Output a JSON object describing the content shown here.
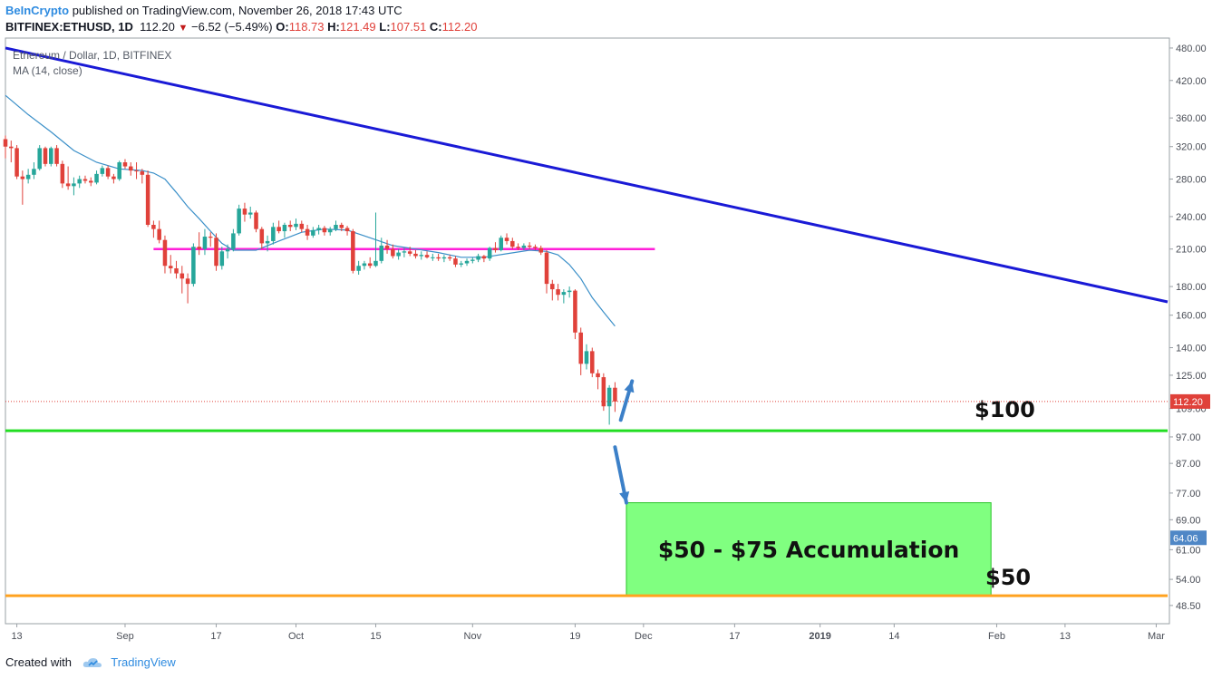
{
  "header": {
    "brand": "BeInCrypto",
    "published": "published on TradingView.com, November 26, 2018 17:43 UTC",
    "symbol": "BITFINEX:ETHUSD, 1D",
    "last": "112.20",
    "change": "−6.52 (−5.49%)",
    "open_label": "O:",
    "open": "118.73",
    "high_label": "H:",
    "high": "121.49",
    "low_label": "L:",
    "low": "107.51",
    "close_label": "C:",
    "close": "112.20"
  },
  "legend": {
    "title": "Ethereum / Dollar, 1D, BITFINEX",
    "indicator": "MA (14, close)"
  },
  "footer": {
    "created_with": "Created with",
    "brand": "TradingView"
  },
  "colors": {
    "up": "#26a69a",
    "down": "#e0413a",
    "ma": "#3a8fc8",
    "trendline": "#1a1ad6",
    "resistance": "#ff1fd9",
    "support_100": "#22dd22",
    "support_50": "#ffa21f",
    "zone_fill": "#80ff80",
    "zone_border": "#28c428",
    "arrow": "#3c80c8",
    "price_tag": "#e0413a",
    "zone_tag": "#4f87c6"
  },
  "chart_data": {
    "type": "candlestick",
    "title": "Ethereum / Dollar, 1D, BITFINEX",
    "y_scale": "log",
    "ylim": [
      45,
      500
    ],
    "y_ticks": [
      "480.00",
      "420.00",
      "360.00",
      "320.00",
      "280.00",
      "240.00",
      "210.00",
      "180.00",
      "160.00",
      "140.00",
      "125.00",
      "109.00",
      "97.00",
      "87.00",
      "77.00",
      "69.00",
      "61.00",
      "54.00",
      "48.50"
    ],
    "x_range": [
      "2018-08-11",
      "2019-03-03"
    ],
    "x_ticks": [
      {
        "date": "2018-08-13",
        "label": "13"
      },
      {
        "date": "2018-09-01",
        "label": "Sep"
      },
      {
        "date": "2018-09-17",
        "label": "17"
      },
      {
        "date": "2018-10-01",
        "label": "Oct"
      },
      {
        "date": "2018-10-15",
        "label": "15"
      },
      {
        "date": "2018-11-01",
        "label": "Nov"
      },
      {
        "date": "2018-11-19",
        "label": "19"
      },
      {
        "date": "2018-12-01",
        "label": "Dec"
      },
      {
        "date": "2018-12-17",
        "label": "17"
      },
      {
        "date": "2019-01-01",
        "label": "2019"
      },
      {
        "date": "2019-01-14",
        "label": "14"
      },
      {
        "date": "2019-02-01",
        "label": "Feb"
      },
      {
        "date": "2019-02-13",
        "label": "13"
      },
      {
        "date": "2019-03-01",
        "label": "Mar"
      }
    ],
    "candles": [
      {
        "d": "2018-08-11",
        "o": 330,
        "h": 335,
        "l": 305,
        "c": 320
      },
      {
        "d": "2018-08-12",
        "o": 320,
        "h": 328,
        "l": 300,
        "c": 318
      },
      {
        "d": "2018-08-13",
        "o": 318,
        "h": 322,
        "l": 280,
        "c": 283
      },
      {
        "d": "2018-08-14",
        "o": 283,
        "h": 290,
        "l": 252,
        "c": 280
      },
      {
        "d": "2018-08-15",
        "o": 280,
        "h": 292,
        "l": 275,
        "c": 285
      },
      {
        "d": "2018-08-16",
        "o": 285,
        "h": 300,
        "l": 280,
        "c": 292
      },
      {
        "d": "2018-08-17",
        "o": 292,
        "h": 322,
        "l": 290,
        "c": 318
      },
      {
        "d": "2018-08-18",
        "o": 318,
        "h": 320,
        "l": 295,
        "c": 298
      },
      {
        "d": "2018-08-19",
        "o": 298,
        "h": 320,
        "l": 295,
        "c": 318
      },
      {
        "d": "2018-08-20",
        "o": 318,
        "h": 322,
        "l": 295,
        "c": 298
      },
      {
        "d": "2018-08-21",
        "o": 298,
        "h": 302,
        "l": 270,
        "c": 275
      },
      {
        "d": "2018-08-22",
        "o": 275,
        "h": 295,
        "l": 268,
        "c": 272
      },
      {
        "d": "2018-08-23",
        "o": 272,
        "h": 282,
        "l": 262,
        "c": 275
      },
      {
        "d": "2018-08-24",
        "o": 275,
        "h": 284,
        "l": 270,
        "c": 280
      },
      {
        "d": "2018-08-25",
        "o": 280,
        "h": 284,
        "l": 275,
        "c": 278
      },
      {
        "d": "2018-08-26",
        "o": 278,
        "h": 282,
        "l": 272,
        "c": 276
      },
      {
        "d": "2018-08-27",
        "o": 276,
        "h": 290,
        "l": 274,
        "c": 286
      },
      {
        "d": "2018-08-28",
        "o": 286,
        "h": 296,
        "l": 283,
        "c": 293
      },
      {
        "d": "2018-08-29",
        "o": 293,
        "h": 296,
        "l": 280,
        "c": 283
      },
      {
        "d": "2018-08-30",
        "o": 283,
        "h": 286,
        "l": 275,
        "c": 280
      },
      {
        "d": "2018-08-31",
        "o": 280,
        "h": 302,
        "l": 278,
        "c": 300
      },
      {
        "d": "2018-09-01",
        "o": 300,
        "h": 304,
        "l": 292,
        "c": 295
      },
      {
        "d": "2018-09-02",
        "o": 295,
        "h": 300,
        "l": 284,
        "c": 290
      },
      {
        "d": "2018-09-03",
        "o": 290,
        "h": 300,
        "l": 280,
        "c": 289
      },
      {
        "d": "2018-09-04",
        "o": 289,
        "h": 292,
        "l": 275,
        "c": 285
      },
      {
        "d": "2018-09-05",
        "o": 285,
        "h": 290,
        "l": 230,
        "c": 232
      },
      {
        "d": "2018-09-06",
        "o": 232,
        "h": 236,
        "l": 220,
        "c": 228
      },
      {
        "d": "2018-09-07",
        "o": 228,
        "h": 236,
        "l": 215,
        "c": 218
      },
      {
        "d": "2018-09-08",
        "o": 218,
        "h": 222,
        "l": 190,
        "c": 196
      },
      {
        "d": "2018-09-09",
        "o": 196,
        "h": 205,
        "l": 190,
        "c": 194
      },
      {
        "d": "2018-09-10",
        "o": 194,
        "h": 200,
        "l": 186,
        "c": 190
      },
      {
        "d": "2018-09-11",
        "o": 190,
        "h": 196,
        "l": 175,
        "c": 186
      },
      {
        "d": "2018-09-12",
        "o": 186,
        "h": 190,
        "l": 168,
        "c": 182
      },
      {
        "d": "2018-09-13",
        "o": 182,
        "h": 215,
        "l": 180,
        "c": 212
      },
      {
        "d": "2018-09-14",
        "o": 212,
        "h": 225,
        "l": 205,
        "c": 210
      },
      {
        "d": "2018-09-15",
        "o": 210,
        "h": 228,
        "l": 205,
        "c": 221
      },
      {
        "d": "2018-09-16",
        "o": 221,
        "h": 225,
        "l": 212,
        "c": 220
      },
      {
        "d": "2018-09-17",
        "o": 220,
        "h": 224,
        "l": 192,
        "c": 196
      },
      {
        "d": "2018-09-18",
        "o": 196,
        "h": 212,
        "l": 193,
        "c": 208
      },
      {
        "d": "2018-09-19",
        "o": 208,
        "h": 214,
        "l": 202,
        "c": 210
      },
      {
        "d": "2018-09-20",
        "o": 210,
        "h": 228,
        "l": 208,
        "c": 224
      },
      {
        "d": "2018-09-21",
        "o": 224,
        "h": 252,
        "l": 222,
        "c": 248
      },
      {
        "d": "2018-09-22",
        "o": 248,
        "h": 254,
        "l": 235,
        "c": 242
      },
      {
        "d": "2018-09-23",
        "o": 242,
        "h": 250,
        "l": 238,
        "c": 244
      },
      {
        "d": "2018-09-24",
        "o": 244,
        "h": 246,
        "l": 225,
        "c": 228
      },
      {
        "d": "2018-09-25",
        "o": 228,
        "h": 230,
        "l": 210,
        "c": 215
      },
      {
        "d": "2018-09-26",
        "o": 215,
        "h": 222,
        "l": 208,
        "c": 217
      },
      {
        "d": "2018-09-27",
        "o": 217,
        "h": 234,
        "l": 214,
        "c": 230
      },
      {
        "d": "2018-09-28",
        "o": 230,
        "h": 236,
        "l": 224,
        "c": 226
      },
      {
        "d": "2018-09-29",
        "o": 226,
        "h": 234,
        "l": 220,
        "c": 232
      },
      {
        "d": "2018-09-30",
        "o": 232,
        "h": 236,
        "l": 226,
        "c": 230
      },
      {
        "d": "2018-10-01",
        "o": 230,
        "h": 238,
        "l": 227,
        "c": 233
      },
      {
        "d": "2018-10-02",
        "o": 233,
        "h": 236,
        "l": 225,
        "c": 228
      },
      {
        "d": "2018-10-03",
        "o": 228,
        "h": 232,
        "l": 218,
        "c": 222
      },
      {
        "d": "2018-10-04",
        "o": 222,
        "h": 230,
        "l": 220,
        "c": 227
      },
      {
        "d": "2018-10-05",
        "o": 227,
        "h": 232,
        "l": 223,
        "c": 229
      },
      {
        "d": "2018-10-06",
        "o": 229,
        "h": 231,
        "l": 222,
        "c": 225
      },
      {
        "d": "2018-10-07",
        "o": 225,
        "h": 230,
        "l": 222,
        "c": 228
      },
      {
        "d": "2018-10-08",
        "o": 228,
        "h": 236,
        "l": 226,
        "c": 232
      },
      {
        "d": "2018-10-09",
        "o": 232,
        "h": 234,
        "l": 226,
        "c": 229
      },
      {
        "d": "2018-10-10",
        "o": 229,
        "h": 231,
        "l": 222,
        "c": 226
      },
      {
        "d": "2018-10-11",
        "o": 226,
        "h": 228,
        "l": 190,
        "c": 192
      },
      {
        "d": "2018-10-12",
        "o": 192,
        "h": 200,
        "l": 189,
        "c": 196
      },
      {
        "d": "2018-10-13",
        "o": 196,
        "h": 200,
        "l": 193,
        "c": 198
      },
      {
        "d": "2018-10-14",
        "o": 198,
        "h": 203,
        "l": 194,
        "c": 196
      },
      {
        "d": "2018-10-15",
        "o": 196,
        "h": 244,
        "l": 195,
        "c": 200
      },
      {
        "d": "2018-10-16",
        "o": 200,
        "h": 220,
        "l": 198,
        "c": 213
      },
      {
        "d": "2018-10-17",
        "o": 213,
        "h": 218,
        "l": 206,
        "c": 210
      },
      {
        "d": "2018-10-18",
        "o": 210,
        "h": 214,
        "l": 202,
        "c": 204
      },
      {
        "d": "2018-10-19",
        "o": 204,
        "h": 210,
        "l": 201,
        "c": 207
      },
      {
        "d": "2018-10-20",
        "o": 207,
        "h": 211,
        "l": 203,
        "c": 208
      },
      {
        "d": "2018-10-21",
        "o": 208,
        "h": 212,
        "l": 204,
        "c": 206
      },
      {
        "d": "2018-10-22",
        "o": 206,
        "h": 209,
        "l": 202,
        "c": 204
      },
      {
        "d": "2018-10-23",
        "o": 204,
        "h": 208,
        "l": 201,
        "c": 205
      },
      {
        "d": "2018-10-24",
        "o": 205,
        "h": 208,
        "l": 202,
        "c": 203
      },
      {
        "d": "2018-10-25",
        "o": 203,
        "h": 206,
        "l": 200,
        "c": 203
      },
      {
        "d": "2018-10-26",
        "o": 203,
        "h": 206,
        "l": 200,
        "c": 202
      },
      {
        "d": "2018-10-27",
        "o": 202,
        "h": 205,
        "l": 199,
        "c": 203
      },
      {
        "d": "2018-10-28",
        "o": 203,
        "h": 205,
        "l": 200,
        "c": 202
      },
      {
        "d": "2018-10-29",
        "o": 202,
        "h": 204,
        "l": 195,
        "c": 197
      },
      {
        "d": "2018-10-30",
        "o": 197,
        "h": 200,
        "l": 195,
        "c": 198
      },
      {
        "d": "2018-10-31",
        "o": 198,
        "h": 202,
        "l": 196,
        "c": 200
      },
      {
        "d": "2018-11-01",
        "o": 200,
        "h": 203,
        "l": 198,
        "c": 201
      },
      {
        "d": "2018-11-02",
        "o": 201,
        "h": 206,
        "l": 199,
        "c": 204
      },
      {
        "d": "2018-11-03",
        "o": 204,
        "h": 205,
        "l": 199,
        "c": 202
      },
      {
        "d": "2018-11-04",
        "o": 202,
        "h": 212,
        "l": 200,
        "c": 211
      },
      {
        "d": "2018-11-05",
        "o": 211,
        "h": 216,
        "l": 207,
        "c": 209
      },
      {
        "d": "2018-11-06",
        "o": 209,
        "h": 222,
        "l": 208,
        "c": 220
      },
      {
        "d": "2018-11-07",
        "o": 220,
        "h": 224,
        "l": 214,
        "c": 217
      },
      {
        "d": "2018-11-08",
        "o": 217,
        "h": 220,
        "l": 210,
        "c": 212
      },
      {
        "d": "2018-11-09",
        "o": 212,
        "h": 215,
        "l": 209,
        "c": 211
      },
      {
        "d": "2018-11-10",
        "o": 211,
        "h": 215,
        "l": 209,
        "c": 213
      },
      {
        "d": "2018-11-11",
        "o": 213,
        "h": 216,
        "l": 210,
        "c": 212
      },
      {
        "d": "2018-11-12",
        "o": 212,
        "h": 214,
        "l": 209,
        "c": 211
      },
      {
        "d": "2018-11-13",
        "o": 211,
        "h": 213,
        "l": 205,
        "c": 207
      },
      {
        "d": "2018-11-14",
        "o": 207,
        "h": 209,
        "l": 175,
        "c": 182
      },
      {
        "d": "2018-11-15",
        "o": 182,
        "h": 185,
        "l": 170,
        "c": 178
      },
      {
        "d": "2018-11-16",
        "o": 178,
        "h": 182,
        "l": 170,
        "c": 174
      },
      {
        "d": "2018-11-17",
        "o": 174,
        "h": 178,
        "l": 168,
        "c": 176
      },
      {
        "d": "2018-11-18",
        "o": 176,
        "h": 180,
        "l": 172,
        "c": 177
      },
      {
        "d": "2018-11-19",
        "o": 177,
        "h": 178,
        "l": 145,
        "c": 149
      },
      {
        "d": "2018-11-20",
        "o": 149,
        "h": 152,
        "l": 125,
        "c": 131
      },
      {
        "d": "2018-11-21",
        "o": 131,
        "h": 142,
        "l": 128,
        "c": 138
      },
      {
        "d": "2018-11-22",
        "o": 138,
        "h": 140,
        "l": 124,
        "c": 126
      },
      {
        "d": "2018-11-23",
        "o": 126,
        "h": 128,
        "l": 118,
        "c": 124
      },
      {
        "d": "2018-11-24",
        "o": 124,
        "h": 126,
        "l": 108,
        "c": 110
      },
      {
        "d": "2018-11-25",
        "o": 110,
        "h": 120,
        "l": 102,
        "c": 118.73
      },
      {
        "d": "2018-11-26",
        "o": 118.73,
        "h": 121.49,
        "l": 107.51,
        "c": 112.2
      }
    ],
    "ma": {
      "name": "MA (14, close)",
      "points": [
        [
          "2018-08-11",
          395
        ],
        [
          "2018-08-15",
          365
        ],
        [
          "2018-08-19",
          340
        ],
        [
          "2018-08-23",
          315
        ],
        [
          "2018-08-27",
          300
        ],
        [
          "2018-08-31",
          292
        ],
        [
          "2018-09-04",
          290
        ],
        [
          "2018-09-06",
          287
        ],
        [
          "2018-09-08",
          280
        ],
        [
          "2018-09-10",
          265
        ],
        [
          "2018-09-12",
          250
        ],
        [
          "2018-09-14",
          238
        ],
        [
          "2018-09-16",
          226
        ],
        [
          "2018-09-18",
          215
        ],
        [
          "2018-09-20",
          209
        ],
        [
          "2018-09-24",
          209
        ],
        [
          "2018-09-28",
          217
        ],
        [
          "2018-10-02",
          225
        ],
        [
          "2018-10-06",
          228
        ],
        [
          "2018-10-10",
          227
        ],
        [
          "2018-10-14",
          220
        ],
        [
          "2018-10-18",
          213
        ],
        [
          "2018-10-22",
          210
        ],
        [
          "2018-10-26",
          207
        ],
        [
          "2018-10-30",
          203
        ],
        [
          "2018-11-03",
          203
        ],
        [
          "2018-11-07",
          206
        ],
        [
          "2018-11-11",
          209
        ],
        [
          "2018-11-14",
          208
        ],
        [
          "2018-11-16",
          205
        ],
        [
          "2018-11-18",
          197
        ],
        [
          "2018-11-20",
          186
        ],
        [
          "2018-11-22",
          172
        ],
        [
          "2018-11-24",
          162
        ],
        [
          "2018-11-26",
          153
        ]
      ]
    },
    "annotations": {
      "trendline": {
        "from": [
          "2018-08-11",
          480
        ],
        "to": [
          "2019-03-03",
          169
        ]
      },
      "resistance": {
        "y": 210,
        "from": "2018-09-06",
        "to": "2018-12-03"
      },
      "support_100": {
        "y": 99.5,
        "label": "$100"
      },
      "support_50": {
        "y": 50.5,
        "label": "$50"
      },
      "zone": {
        "from": "2018-11-28",
        "to": "2019-01-31",
        "y_low": 50.5,
        "y_high": 74,
        "label": "$50 - $75 Accumulation"
      },
      "last_price_tag": "112.20",
      "zone_price_tag": "64.06",
      "arrow_up": {
        "from": [
          "2018-11-27",
          104
        ],
        "to": [
          "2018-11-29",
          122
        ]
      },
      "arrow_down": {
        "from": [
          "2018-11-26",
          93
        ],
        "to": [
          "2018-11-28",
          74
        ]
      }
    }
  }
}
